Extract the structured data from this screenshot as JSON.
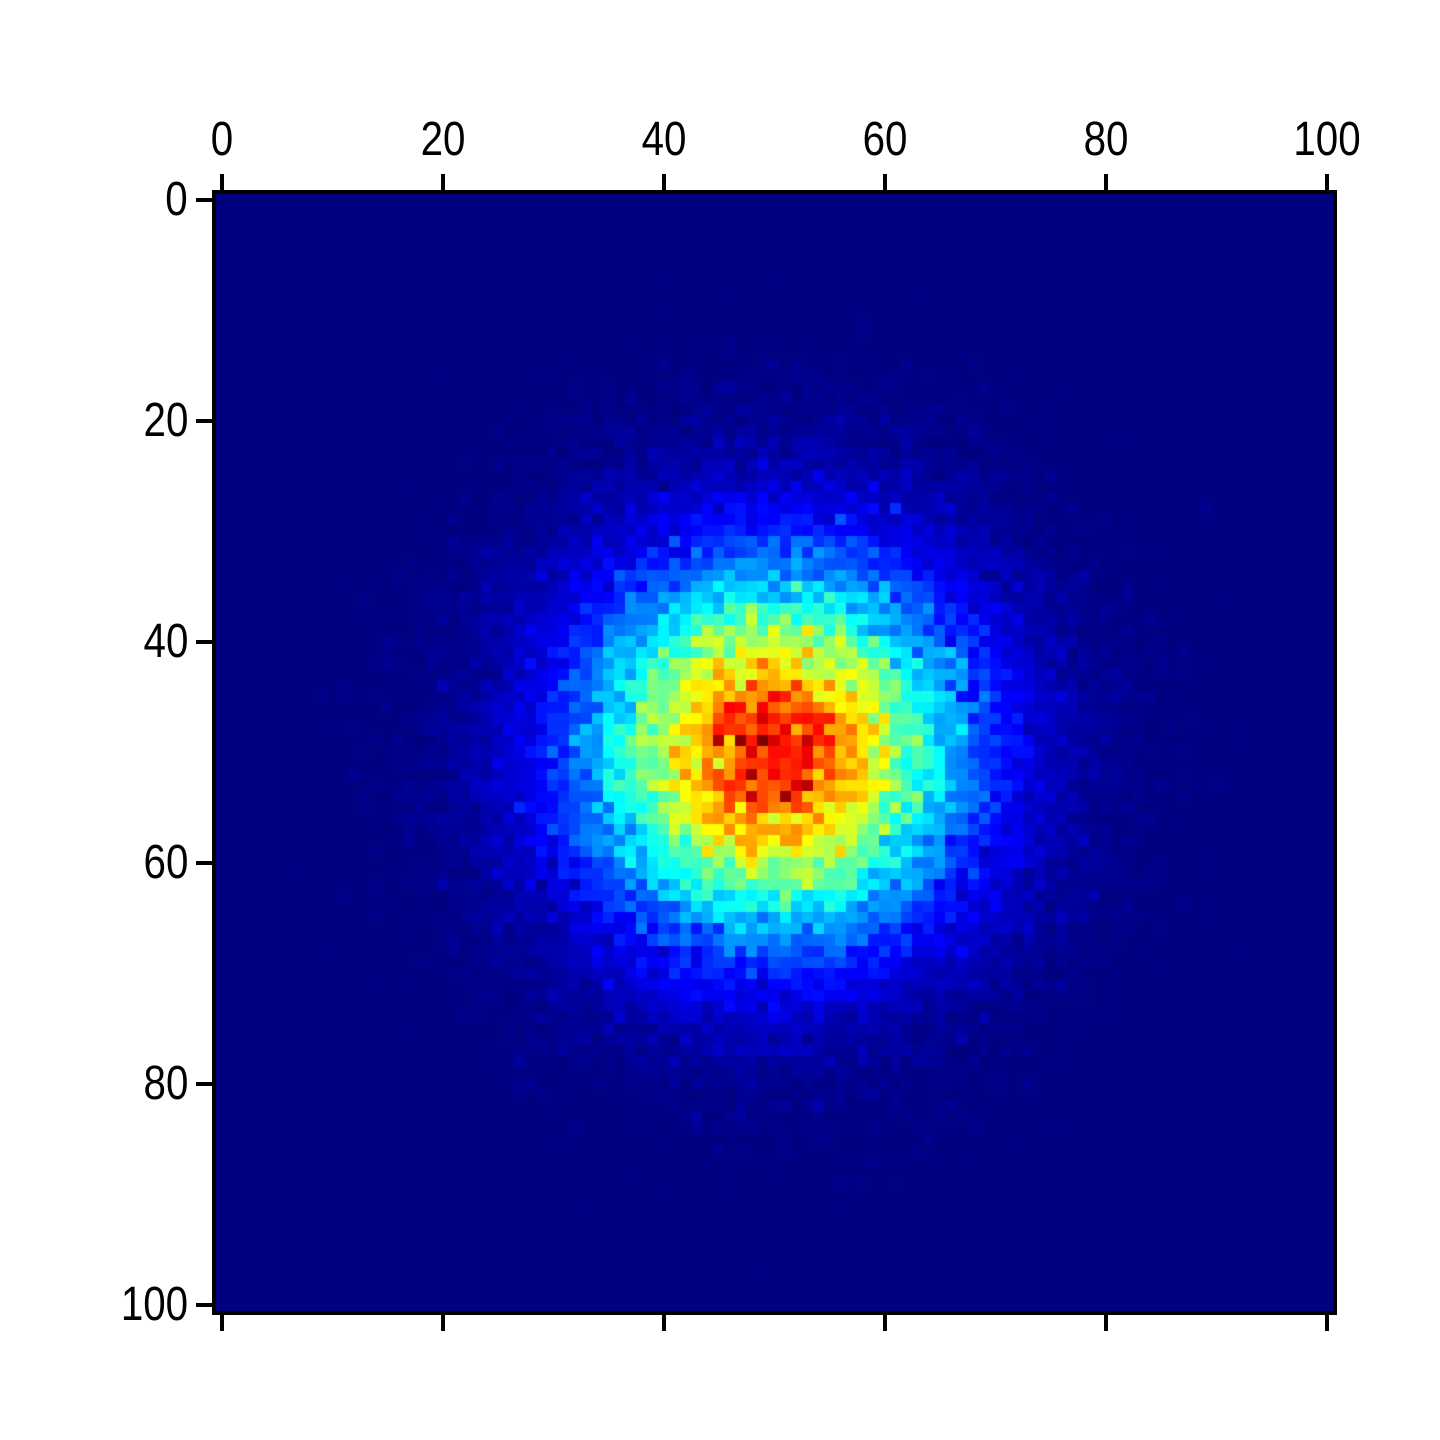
{
  "chart_data": {
    "type": "heatmap",
    "title": "",
    "xlabel": "",
    "ylabel": "",
    "x_ticks": [
      0,
      20,
      40,
      60,
      80,
      100
    ],
    "y_ticks": [
      0,
      20,
      40,
      60,
      80,
      100
    ],
    "x_tick_labels": [
      "0",
      "20",
      "40",
      "60",
      "80",
      "100"
    ],
    "y_tick_labels": [
      "0",
      "20",
      "40",
      "60",
      "80",
      "100"
    ],
    "x_tick_label_side": "top",
    "y_tick_label_side": "left",
    "xlim": [
      -0.5,
      100.5
    ],
    "ylim": [
      100.5,
      -0.5
    ],
    "grid_cols": 101,
    "grid_rows": 101,
    "colormap": "jet",
    "colormap_min_color": "#000080",
    "colormap_max_color": "#800000",
    "background_value_color": "#000080",
    "spine_color": "#000000",
    "figure_background": "#ffffff",
    "model": {
      "description": "Poisson-noisy 2D Gaussian density (2D histogram of gaussian samples)",
      "center_x": 50,
      "center_y": 50,
      "sigma_x": 11,
      "sigma_y": 11,
      "peak_counts": 150,
      "background_counts": 0
    }
  }
}
